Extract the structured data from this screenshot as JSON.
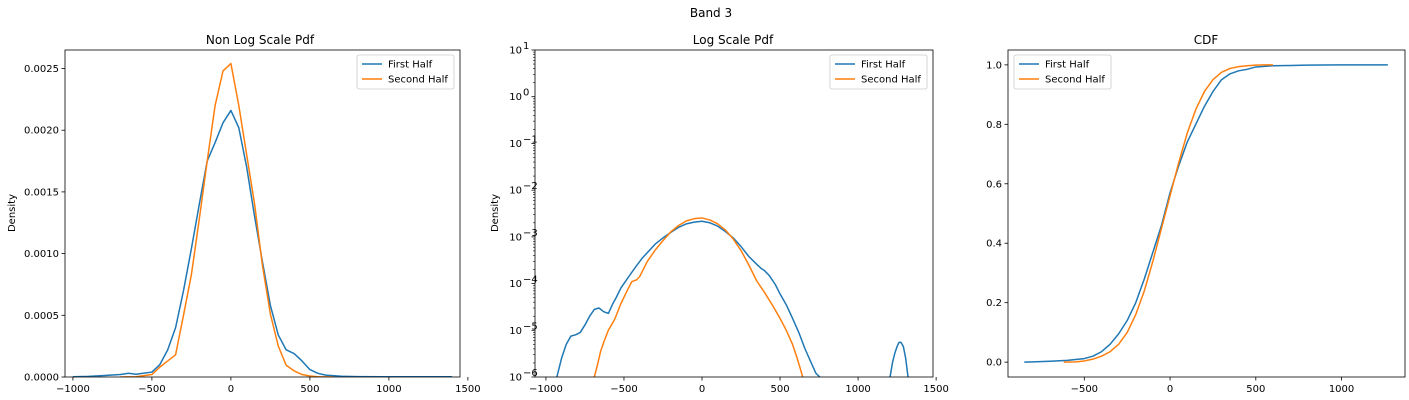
{
  "figure": {
    "suptitle": "Band 3"
  },
  "colors": {
    "first_half": "#1f77b4",
    "second_half": "#ff7f0e"
  },
  "chart_data": [
    {
      "type": "line",
      "title": "Non Log Scale Pdf",
      "xlabel": "",
      "ylabel": "Density",
      "xlim": [
        -1050,
        1450
      ],
      "ylim": [
        0,
        0.00265
      ],
      "yscale": "linear",
      "xticks": [
        -1000,
        -500,
        0,
        500,
        1000,
        1500
      ],
      "xtick_labels": [
        "−1000",
        "−500",
        "0",
        "500",
        "1000",
        "1500"
      ],
      "yticks": [
        0,
        0.0005,
        0.001,
        0.0015,
        0.002,
        0.0025
      ],
      "ytick_labels": [
        "0.0000",
        "0.0005",
        "0.0010",
        "0.0015",
        "0.0020",
        "0.0025"
      ],
      "legend": {
        "position": "top-right",
        "entries": [
          "First Half",
          "Second Half"
        ]
      },
      "series": [
        {
          "name": "First Half",
          "x": [
            -1000,
            -900,
            -800,
            -700,
            -650,
            -600,
            -500,
            -450,
            -400,
            -350,
            -300,
            -250,
            -200,
            -150,
            -100,
            -50,
            0,
            50,
            100,
            150,
            200,
            250,
            300,
            350,
            400,
            450,
            500,
            550,
            600,
            700,
            800,
            1000,
            1200,
            1400
          ],
          "y": [
            2e-06,
            5e-06,
            1.2e-05,
            2e-05,
            3e-05,
            2.2e-05,
            4e-05,
            0.0001,
            0.00022,
            0.0004,
            0.0007,
            0.00104,
            0.0014,
            0.00175,
            0.0019,
            0.00206,
            0.00216,
            0.00202,
            0.0017,
            0.0013,
            0.00093,
            0.00058,
            0.00034,
            0.00022,
            0.00019,
            0.00013,
            6e-05,
            3e-05,
            1.5e-05,
            6e-06,
            3e-06,
            2e-06,
            2e-06,
            2e-06
          ]
        },
        {
          "name": "Second Half",
          "x": [
            -700,
            -600,
            -500,
            -450,
            -400,
            -350,
            -300,
            -250,
            -200,
            -150,
            -100,
            -50,
            0,
            50,
            100,
            150,
            200,
            250,
            300,
            350,
            400,
            450,
            500,
            550,
            600,
            650
          ],
          "y": [
            0,
            2e-06,
            2e-05,
            8e-05,
            0.00013,
            0.00018,
            0.0005,
            0.00083,
            0.00128,
            0.00175,
            0.0022,
            0.00248,
            0.00254,
            0.0022,
            0.0018,
            0.0014,
            0.0009,
            0.00051,
            0.00025,
            9.5e-05,
            5e-05,
            2e-05,
            8e-06,
            2e-06,
            1e-06,
            0
          ]
        }
      ]
    },
    {
      "type": "line",
      "title": "Log Scale Pdf",
      "xlabel": "",
      "ylabel": "Density",
      "xlim": [
        -1070,
        1480
      ],
      "ylim": [
        1e-06,
        10
      ],
      "yscale": "log",
      "xticks": [
        -1000,
        -500,
        0,
        500,
        1000,
        1500
      ],
      "xtick_labels": [
        "−1000",
        "−500",
        "0",
        "500",
        "1000",
        "1500"
      ],
      "yticks": [
        1e-06,
        1e-05,
        0.0001,
        0.001,
        0.01,
        0.1,
        1,
        10
      ],
      "ytick_labels": [
        {
          "base": "10",
          "exp": "−6"
        },
        {
          "base": "10",
          "exp": "−5"
        },
        {
          "base": "10",
          "exp": "−4"
        },
        {
          "base": "10",
          "exp": "−3"
        },
        {
          "base": "10",
          "exp": "−2"
        },
        {
          "base": "10",
          "exp": "−1"
        },
        {
          "base": "10",
          "exp": "0"
        },
        {
          "base": "10",
          "exp": "1"
        }
      ],
      "legend": {
        "position": "top-right",
        "entries": [
          "First Half",
          "Second Half"
        ]
      },
      "series": [
        {
          "name": "First Half",
          "segments": [
            {
              "x": [
                -930,
                -900,
                -870,
                -840,
                -810,
                -780,
                -750,
                -720,
                -690,
                -660,
                -630,
                -600,
                -570,
                -550,
                -520,
                -500,
                -470,
                -420,
                -380,
                -340,
                -300,
                -250,
                -200,
                -150,
                -100,
                -50,
                0,
                50,
                100,
                150,
                200,
                250,
                300,
                350,
                380,
                400,
                430,
                470,
                500,
                540,
                580,
                620,
                660,
                700,
                730,
                755
              ],
              "y": [
                1e-06,
                2.5e-06,
                5e-06,
                7.5e-06,
                8e-06,
                9e-06,
                1.3e-05,
                2e-05,
                2.8e-05,
                3e-05,
                2.5e-05,
                2.3e-05,
                3.8e-05,
                5e-05,
                8e-05,
                0.0001,
                0.00014,
                0.00024,
                0.00036,
                0.0005,
                0.0007,
                0.00095,
                0.00125,
                0.0016,
                0.0019,
                0.00207,
                0.00216,
                0.002,
                0.0017,
                0.0013,
                0.00095,
                0.00062,
                0.00038,
                0.00026,
                0.00021,
                0.00019,
                0.00015,
                9.5e-05,
                6e-05,
                3.5e-05,
                1.8e-05,
                9e-06,
                4e-06,
                2e-06,
                1.2e-06,
                1e-06
              ]
            },
            {
              "x": [
                1205,
                1220,
                1235,
                1250,
                1262,
                1275,
                1290,
                1305,
                1320
              ],
              "y": [
                1e-06,
                2e-06,
                3.2e-06,
                4.5e-06,
                5.5e-06,
                5.5e-06,
                4.5e-06,
                2.5e-06,
                1e-06
              ]
            }
          ]
        },
        {
          "name": "Second Half",
          "segments": [
            {
              "x": [
                -690,
                -670,
                -650,
                -630,
                -600,
                -560,
                -520,
                -480,
                -450,
                -420,
                -400,
                -380,
                -350,
                -300,
                -250,
                -200,
                -150,
                -100,
                -50,
                0,
                50,
                100,
                150,
                200,
                250,
                300,
                350,
                400,
                450,
                500,
                540,
                580,
                610,
                630,
                645
              ],
              "y": [
                1e-06,
                1.8e-06,
                3.5e-06,
                5.5e-06,
                1e-05,
                1.7e-05,
                3.7e-05,
                7e-05,
                0.00011,
                0.00012,
                0.00014,
                0.00019,
                0.0003,
                0.00052,
                0.00083,
                0.00128,
                0.00175,
                0.0022,
                0.00245,
                0.00254,
                0.0023,
                0.0019,
                0.0014,
                0.0009,
                0.00051,
                0.00025,
                0.000115,
                6.5e-05,
                3.5e-05,
                1.8e-05,
                1e-05,
                5e-06,
                2.5e-06,
                1.5e-06,
                1e-06
              ]
            }
          ]
        }
      ]
    },
    {
      "type": "line",
      "title": "CDF",
      "xlabel": "",
      "ylabel": "",
      "xlim": [
        -945,
        1370
      ],
      "ylim": [
        -0.05,
        1.05
      ],
      "yscale": "linear",
      "xticks": [
        -500,
        0,
        500,
        1000
      ],
      "xtick_labels": [
        "−500",
        "0",
        "500",
        "1000"
      ],
      "yticks": [
        0,
        0.2,
        0.4,
        0.6,
        0.8,
        1.0
      ],
      "ytick_labels": [
        "0.0",
        "0.2",
        "0.4",
        "0.6",
        "0.8",
        "1.0"
      ],
      "legend": {
        "position": "top-left",
        "entries": [
          "First Half",
          "Second Half"
        ]
      },
      "series": [
        {
          "name": "First Half",
          "x": [
            -850,
            -800,
            -700,
            -600,
            -500,
            -450,
            -400,
            -350,
            -300,
            -250,
            -200,
            -150,
            -100,
            -50,
            0,
            50,
            100,
            150,
            200,
            250,
            300,
            350,
            400,
            450,
            500,
            600,
            700,
            800,
            1000,
            1270
          ],
          "y": [
            0.0,
            0.001,
            0.003,
            0.006,
            0.012,
            0.02,
            0.035,
            0.06,
            0.095,
            0.14,
            0.2,
            0.28,
            0.37,
            0.46,
            0.57,
            0.66,
            0.74,
            0.8,
            0.86,
            0.91,
            0.95,
            0.97,
            0.98,
            0.985,
            0.993,
            0.997,
            0.998,
            0.999,
            1.0,
            1.0
          ]
        },
        {
          "name": "Second Half",
          "x": [
            -620,
            -550,
            -500,
            -450,
            -400,
            -350,
            -300,
            -250,
            -200,
            -150,
            -100,
            -50,
            0,
            50,
            100,
            150,
            200,
            250,
            300,
            350,
            400,
            450,
            500,
            550,
            600
          ],
          "y": [
            0.0,
            0.001,
            0.004,
            0.01,
            0.02,
            0.035,
            0.06,
            0.1,
            0.16,
            0.24,
            0.34,
            0.45,
            0.56,
            0.67,
            0.77,
            0.85,
            0.91,
            0.95,
            0.975,
            0.988,
            0.994,
            0.997,
            0.999,
            1.0,
            1.0
          ]
        }
      ]
    }
  ]
}
